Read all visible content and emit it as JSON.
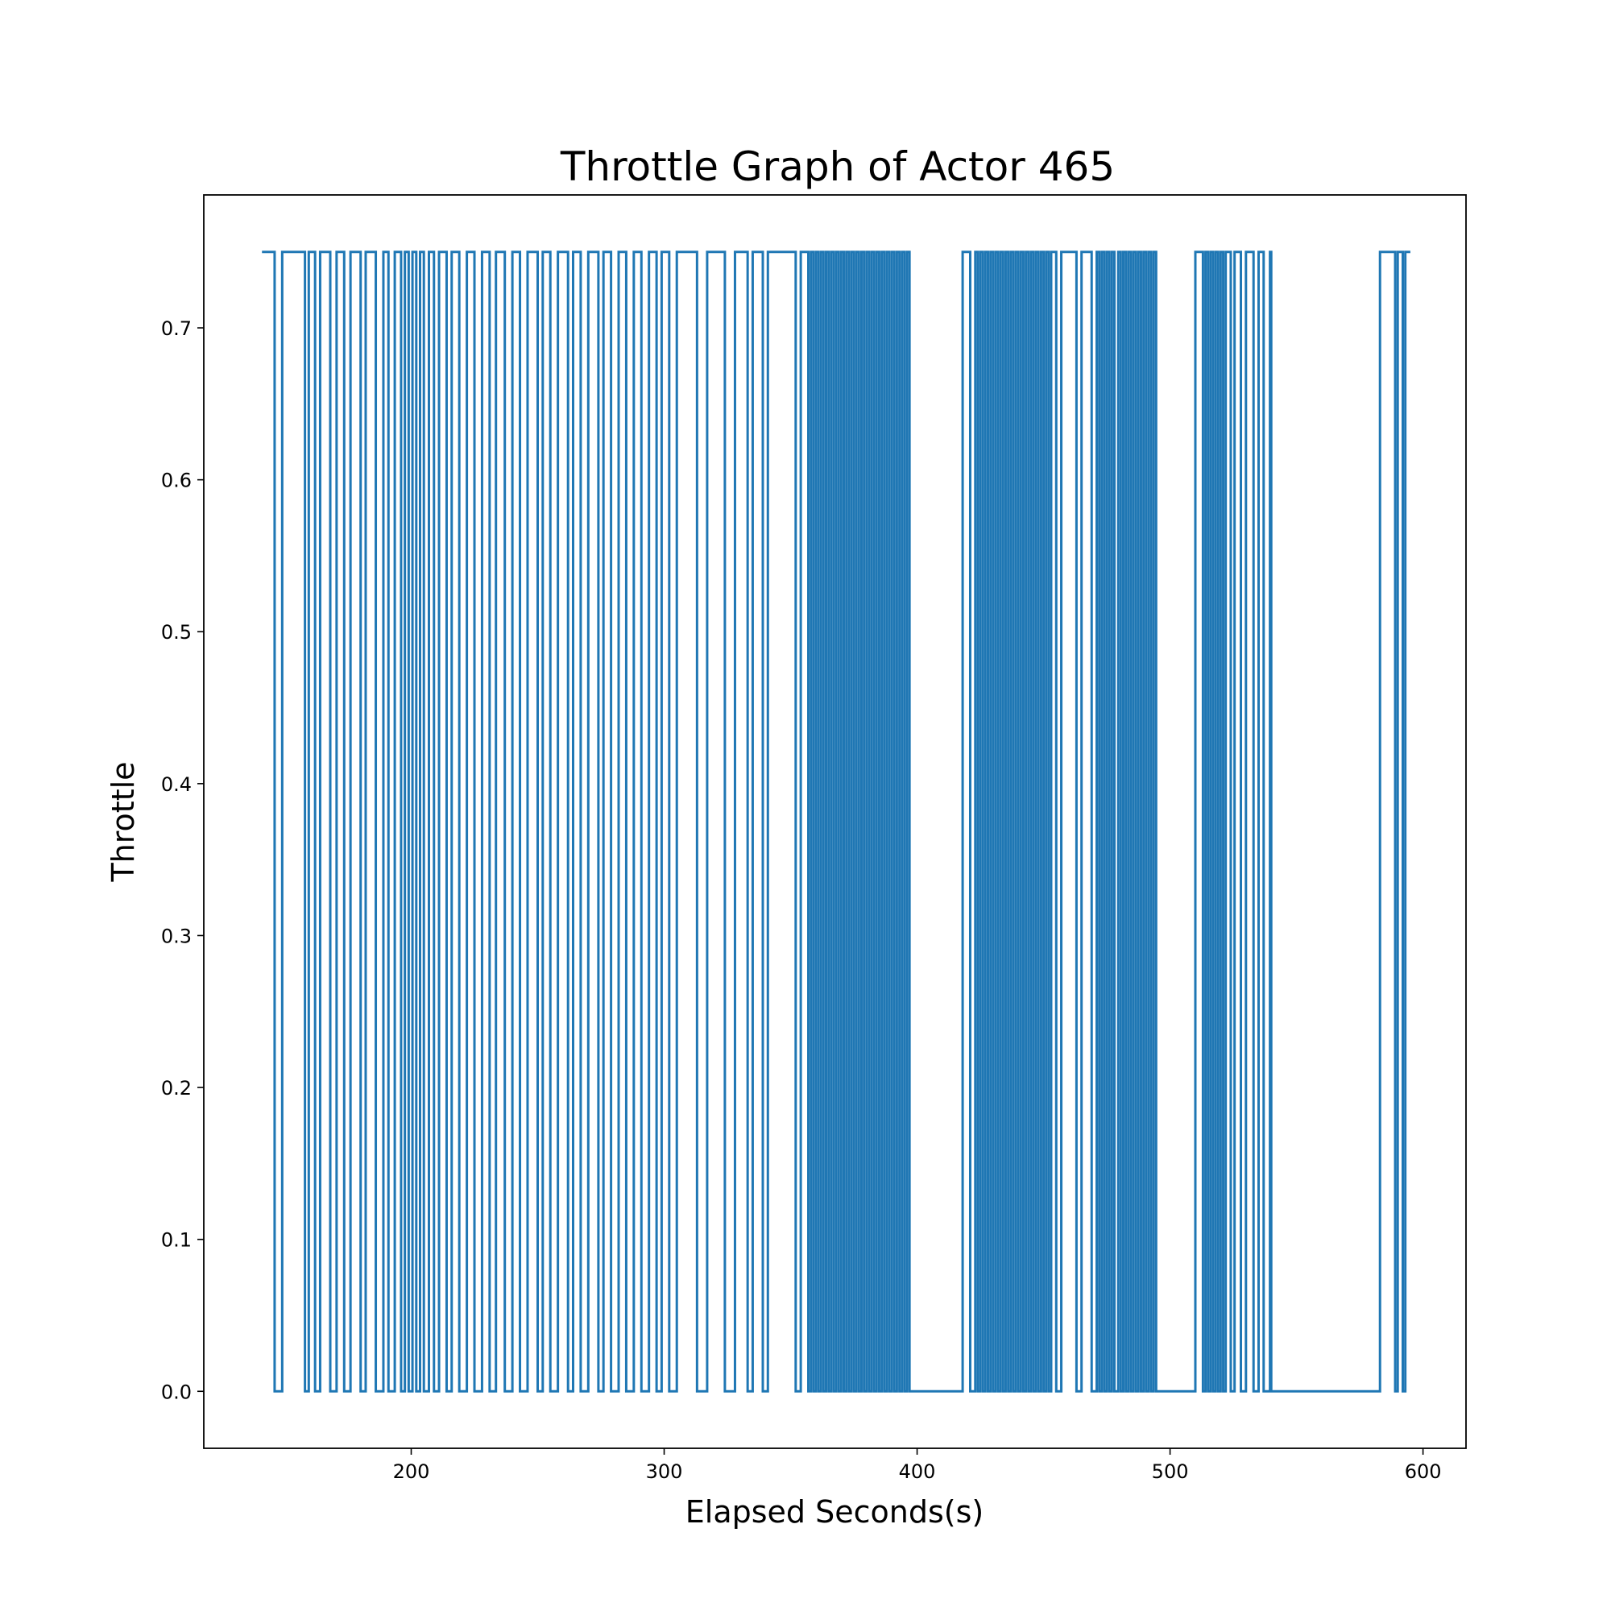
{
  "chart_data": {
    "type": "line",
    "title": "Throttle Graph of Actor 465",
    "xlabel": "Elapsed Seconds(s)",
    "ylabel": "Throttle",
    "xlim": [
      118,
      617
    ],
    "ylim": [
      -0.0375,
      0.7875
    ],
    "xticks": [
      200,
      300,
      400,
      500,
      600
    ],
    "yticks": [
      0.0,
      0.1,
      0.2,
      0.3,
      0.4,
      0.5,
      0.6,
      0.7
    ],
    "ytick_labels": [
      "0.0",
      "0.1",
      "0.2",
      "0.3",
      "0.4",
      "0.5",
      "0.6",
      "0.7"
    ],
    "grid": false,
    "legend": "none",
    "line_color": "#1f77b4",
    "series": [
      {
        "step": "post",
        "high": 0.75,
        "low": 0.0,
        "start_x": 141,
        "end_x": 595,
        "off_intervals": [
          [
            146,
            149
          ],
          [
            158,
            159.5
          ],
          [
            162,
            164
          ],
          [
            168,
            170.5
          ],
          [
            173.5,
            176
          ],
          [
            180,
            182
          ],
          [
            186,
            189
          ],
          [
            191,
            193.5
          ],
          [
            196,
            197.5
          ],
          [
            199,
            200.5
          ],
          [
            202,
            203.5
          ],
          [
            205,
            207
          ],
          [
            209,
            211
          ],
          [
            214,
            216
          ],
          [
            219,
            222
          ],
          [
            225,
            228
          ],
          [
            231,
            233.5
          ],
          [
            237,
            240
          ],
          [
            243,
            246
          ],
          [
            250,
            252
          ],
          [
            255,
            258
          ],
          [
            262,
            264
          ],
          [
            267,
            270
          ],
          [
            274,
            276
          ],
          [
            279,
            282
          ],
          [
            285,
            288
          ],
          [
            291,
            294
          ],
          [
            297,
            299
          ],
          [
            302,
            305
          ],
          [
            313,
            317
          ],
          [
            324,
            328
          ],
          [
            333,
            335
          ],
          [
            339,
            341
          ],
          [
            352,
            354
          ],
          [
            357,
            358
          ],
          [
            359,
            360
          ],
          [
            361,
            362
          ],
          [
            363,
            364
          ],
          [
            365,
            366
          ],
          [
            367,
            368
          ],
          [
            369,
            370
          ],
          [
            371,
            372
          ],
          [
            373,
            374
          ],
          [
            375,
            376
          ],
          [
            377,
            378
          ],
          [
            379,
            380
          ],
          [
            381,
            382
          ],
          [
            383,
            384
          ],
          [
            385,
            386
          ],
          [
            387,
            388
          ],
          [
            389,
            390
          ],
          [
            391,
            392
          ],
          [
            393,
            394
          ],
          [
            395,
            396
          ],
          [
            397,
            418
          ],
          [
            421,
            423
          ],
          [
            424,
            425
          ],
          [
            426,
            427
          ],
          [
            428,
            429
          ],
          [
            430,
            431
          ],
          [
            432,
            433
          ],
          [
            434,
            435
          ],
          [
            436,
            437
          ],
          [
            438,
            439
          ],
          [
            440,
            441
          ],
          [
            442,
            443
          ],
          [
            444,
            445
          ],
          [
            446,
            447
          ],
          [
            448,
            449
          ],
          [
            450,
            451
          ],
          [
            452,
            453
          ],
          [
            455,
            457
          ],
          [
            463,
            465
          ],
          [
            469,
            471
          ],
          [
            472,
            473
          ],
          [
            474,
            475
          ],
          [
            476,
            477
          ],
          [
            478,
            479.5
          ],
          [
            480.5,
            481.5
          ],
          [
            482.5,
            483.5
          ],
          [
            484.5,
            485.5
          ],
          [
            486.5,
            487.5
          ],
          [
            488.5,
            489.5
          ],
          [
            490.5,
            491.5
          ],
          [
            492.5,
            493.5
          ],
          [
            494.5,
            510
          ],
          [
            513,
            514
          ],
          [
            515,
            516
          ],
          [
            517,
            518
          ],
          [
            519,
            520
          ],
          [
            521,
            522
          ],
          [
            524,
            525.5
          ],
          [
            528,
            530
          ],
          [
            533,
            535
          ],
          [
            537,
            539.5
          ],
          [
            540,
            583
          ],
          [
            589,
            590
          ],
          [
            592,
            593
          ]
        ]
      }
    ]
  }
}
